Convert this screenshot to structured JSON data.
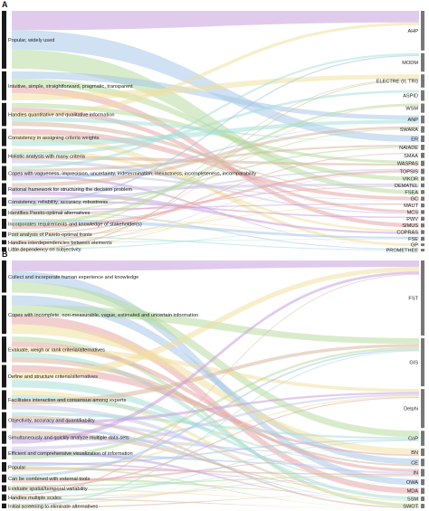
{
  "panels": [
    {
      "letter": "A",
      "left": [
        {
          "label": "Popular, widely used",
          "w": 40
        },
        {
          "label": "Intuitive, simple, straightforward, pragmatic, transparent",
          "w": 20
        },
        {
          "label": "Handles quantitative and qualitative information",
          "w": 16
        },
        {
          "label": "Consistency in assigning criteria weights",
          "w": 12
        },
        {
          "label": "Holistic analysis with many criteria",
          "w": 10
        },
        {
          "label": "Copes with vagueness, imprecision, uncertainty, indetermination, inexactness, incompleteness, incomparability",
          "w": 10
        },
        {
          "label": "Rational framework for structuring the decision problem",
          "w": 8
        },
        {
          "label": "Consistency, reliability, accuracy, robustness",
          "w": 6
        },
        {
          "label": "Identifies Pareto-optimal alternatives",
          "w": 5
        },
        {
          "label": "Incorporates requirements and knowledge of stakeholder(s)",
          "w": 7
        },
        {
          "label": "Post analysis of Pareto-optimal fronts",
          "w": 4
        },
        {
          "label": "Handles interdependencies between elements",
          "w": 3
        },
        {
          "label": "Little dependency on subjectivity",
          "w": 3
        }
      ],
      "right": [
        {
          "label": "AHP",
          "w": 30
        },
        {
          "label": "MODM",
          "w": 14
        },
        {
          "label": "ELECTRE (II, TRI)",
          "w": 10
        },
        {
          "label": "ASPID",
          "w": 8
        },
        {
          "label": "WSM",
          "w": 7
        },
        {
          "label": "ANP",
          "w": 6
        },
        {
          "label": "SWARA",
          "w": 5
        },
        {
          "label": "ER",
          "w": 5
        },
        {
          "label": "NAIADE",
          "w": 4
        },
        {
          "label": "SMAA",
          "w": 4
        },
        {
          "label": "WASPAS",
          "w": 4
        },
        {
          "label": "TOPSIS",
          "w": 4
        },
        {
          "label": "VIKOR",
          "w": 3
        },
        {
          "label": "DEMATEL",
          "w": 3
        },
        {
          "label": "FSEA",
          "w": 3
        },
        {
          "label": "GC",
          "w": 3
        },
        {
          "label": "MAUT",
          "w": 3
        },
        {
          "label": "MCS",
          "w": 3
        },
        {
          "label": "PWV",
          "w": 3
        },
        {
          "label": "SIMUS",
          "w": 3
        },
        {
          "label": "COPRAS",
          "w": 3
        },
        {
          "label": "FSE",
          "w": 3
        },
        {
          "label": "GP",
          "w": 2
        },
        {
          "label": "PROMETHEE",
          "w": 2
        }
      ]
    },
    {
      "letter": "B",
      "left": [
        {
          "label": "Collect and incorporate human experience and knowledge",
          "w": 20
        },
        {
          "label": "Copes with incomplete, non-measurable, vague, estimated and uncertain information",
          "w": 24
        },
        {
          "label": "Evaluate, weigh or rank criteria/alternatives",
          "w": 16
        },
        {
          "label": "Define and structure criteria/alternatives",
          "w": 14
        },
        {
          "label": "Facilitates interaction and consensus among experts",
          "w": 12
        },
        {
          "label": "Objectivity, accuracy and quantifiability",
          "w": 10
        },
        {
          "label": "Simultaneously and quickly analyze multiple data-sets",
          "w": 8
        },
        {
          "label": "Efficient and comprehensive visualization of information",
          "w": 8
        },
        {
          "label": "Popular",
          "w": 6
        },
        {
          "label": "Can be combined with external tools",
          "w": 5
        },
        {
          "label": "Evaluate spatial/temporal variability",
          "w": 4
        },
        {
          "label": "Handles multiple scales",
          "w": 4
        },
        {
          "label": "Initial screening to eliminate alternatives",
          "w": 3
        }
      ],
      "right": [
        {
          "label": "FST",
          "w": 50
        },
        {
          "label": "GIS",
          "w": 32
        },
        {
          "label": "Delphi",
          "w": 26
        },
        {
          "label": "CoP",
          "w": 10
        },
        {
          "label": "BN",
          "w": 5
        },
        {
          "label": "CE",
          "w": 5
        },
        {
          "label": "IN",
          "w": 5
        },
        {
          "label": "OWA",
          "w": 4
        },
        {
          "label": "MDA",
          "w": 4
        },
        {
          "label": "SSM",
          "w": 3
        },
        {
          "label": "SWOT",
          "w": 3
        }
      ]
    }
  ],
  "colors": [
    "#c9a0dc",
    "#a8c8e8",
    "#b8dca0",
    "#e8a8a8",
    "#f0e0a0",
    "#a8e0d8",
    "#d8b8a0",
    "#c8c8e8"
  ]
}
